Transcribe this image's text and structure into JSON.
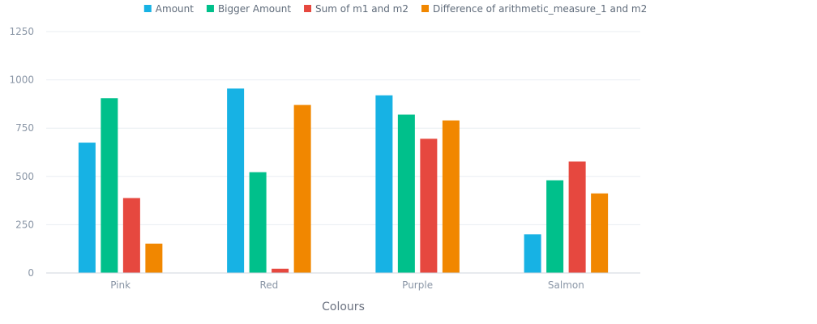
{
  "chart_data": {
    "type": "bar",
    "categories": [
      "Pink",
      "Red",
      "Purple",
      "Salmon"
    ],
    "series": [
      {
        "name": "Amount",
        "color": "#17b2e4",
        "values": [
          675,
          955,
          920,
          200
        ]
      },
      {
        "name": "Bigger Amount",
        "color": "#00c08b",
        "values": [
          905,
          522,
          820,
          480
        ]
      },
      {
        "name": "Sum of m1 and m2",
        "color": "#e6483f",
        "values": [
          388,
          22,
          695,
          577
        ]
      },
      {
        "name": "Difference of arithmetic_measure_1 and m2",
        "color": "#f18700",
        "values": [
          152,
          870,
          790,
          412
        ]
      }
    ],
    "xlabel": "Colours",
    "ylabel": "",
    "ylim": [
      0,
      1250
    ],
    "yticks": [
      0,
      250,
      500,
      750,
      1000,
      1250
    ],
    "grid": true,
    "legend_position": "top"
  }
}
